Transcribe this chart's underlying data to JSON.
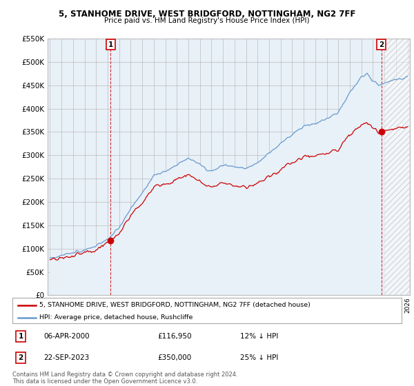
{
  "title": "5, STANHOME DRIVE, WEST BRIDGFORD, NOTTINGHAM, NG2 7FF",
  "subtitle": "Price paid vs. HM Land Registry's House Price Index (HPI)",
  "legend_label_red": "5, STANHOME DRIVE, WEST BRIDGFORD, NOTTINGHAM, NG2 7FF (detached house)",
  "legend_label_blue": "HPI: Average price, detached house, Rushcliffe",
  "annotation1_label": "1",
  "annotation1_date": "06-APR-2000",
  "annotation1_price": "£116,950",
  "annotation1_hpi": "12% ↓ HPI",
  "annotation2_label": "2",
  "annotation2_date": "22-SEP-2023",
  "annotation2_price": "£350,000",
  "annotation2_hpi": "25% ↓ HPI",
  "footer": "Contains HM Land Registry data © Crown copyright and database right 2024.\nThis data is licensed under the Open Government Licence v3.0.",
  "ylim": [
    0,
    550000
  ],
  "yticks": [
    0,
    50000,
    100000,
    150000,
    200000,
    250000,
    300000,
    350000,
    400000,
    450000,
    500000,
    550000
  ],
  "year_start": 1995,
  "year_end": 2026,
  "bg_color": "#ffffff",
  "chart_bg": "#e8f0f8",
  "grid_color": "#bbbbbb",
  "red_color": "#cc0000",
  "blue_color": "#6699cc",
  "sale1_year": 2000.27,
  "sale1_price": 116950,
  "sale2_year": 2023.73,
  "sale2_price": 350000
}
